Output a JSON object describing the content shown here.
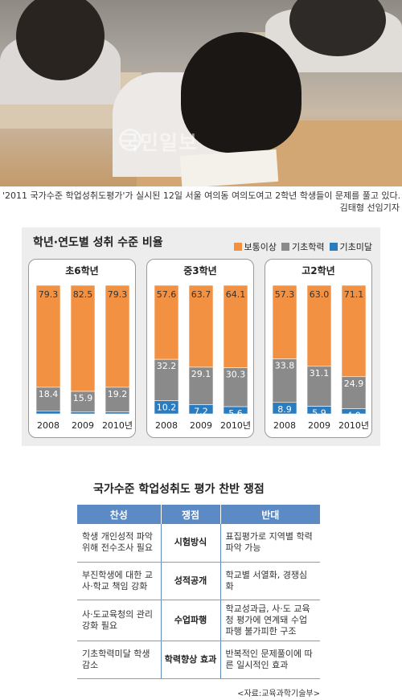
{
  "photo": {
    "watermark": "국민일보",
    "caption": "'2011 국가수준 학업성취도평가'가 실시된 12일 서울 여의동 여의도여고 2학년 학생들이 문제를 풀고 있다.",
    "credit": "김태형 선임기자"
  },
  "chart_data": {
    "type": "bar",
    "title": "학년·연도별 성취 수준 비율",
    "legend": [
      "보통이상",
      "기초학력",
      "기초미달"
    ],
    "colors": {
      "보통이상": "#f39142",
      "기초학력": "#8a8a8a",
      "기초미달": "#2b7bbf"
    },
    "groups": [
      {
        "name": "초6학년",
        "categories": [
          "2008",
          "2009",
          "2010년"
        ],
        "series": [
          {
            "name": "보통이상",
            "values": [
              79.3,
              82.5,
              79.3
            ]
          },
          {
            "name": "기초학력",
            "values": [
              18.4,
              15.9,
              19.2
            ]
          },
          {
            "name": "기초미달",
            "values": [
              2.3,
              1.6,
              1.5
            ]
          }
        ]
      },
      {
        "name": "중3학년",
        "categories": [
          "2008",
          "2009",
          "2010년"
        ],
        "series": [
          {
            "name": "보통이상",
            "values": [
              57.6,
              63.7,
              64.1
            ]
          },
          {
            "name": "기초학력",
            "values": [
              32.2,
              29.1,
              30.3
            ]
          },
          {
            "name": "기초미달",
            "values": [
              10.2,
              7.2,
              5.6
            ]
          }
        ]
      },
      {
        "name": "고2학년",
        "categories": [
          "2008",
          "2009",
          "2010년"
        ],
        "series": [
          {
            "name": "보통이상",
            "values": [
              57.3,
              63.0,
              71.1
            ]
          },
          {
            "name": "기초학력",
            "values": [
              33.8,
              31.1,
              24.9
            ]
          },
          {
            "name": "기초미달",
            "values": [
              8.9,
              5.9,
              4.0
            ]
          }
        ]
      }
    ]
  },
  "table": {
    "title": "국가수준 학업성취도 평가 찬반 쟁점",
    "headers": [
      "찬성",
      "쟁점",
      "반대"
    ],
    "rows": [
      {
        "pro": "학생 개인성적 파악 위해 전수조사 필요",
        "issue": "시험방식",
        "con": "표집평가로 지역별 학력 파악 가능"
      },
      {
        "pro": "부진학생에 대한 교사·학교 책임 강화",
        "issue": "성적공개",
        "con": "학교별 서열화, 경쟁심화"
      },
      {
        "pro": "사·도교육청의 관리 강화 필요",
        "issue": "수업파행",
        "con": "학교성과급, 사·도 교육청 평가에 연계돼 수업 파행 불가피한 구조"
      },
      {
        "pro": "기초학력미달 학생 감소",
        "issue": "학력향상 효과",
        "con": "반복적인 문제풀이에 따른 일시적인 효과"
      }
    ],
    "source": "<자료:교육과학기술부>"
  }
}
